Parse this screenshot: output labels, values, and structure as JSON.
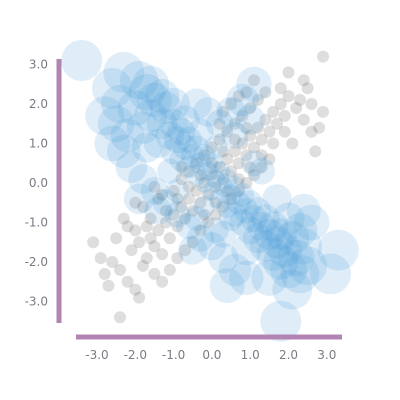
{
  "chart_data": {
    "type": "scatter",
    "title": "",
    "xlabel": "",
    "ylabel": "",
    "xlim": [
      -3.8,
      3.4
    ],
    "ylim": [
      -3.6,
      3.2
    ],
    "grid": false,
    "x_ticks": [
      -3.0,
      -2.0,
      -1.0,
      0.0,
      1.0,
      2.0,
      3.0
    ],
    "y_ticks": [
      -3.0,
      -2.0,
      -1.0,
      0.0,
      1.0,
      2.0,
      3.0
    ],
    "x_tick_labels": [
      "-3.0",
      "-2.0",
      "-1.0",
      "0.0",
      "1.0",
      "2.0",
      "3.0"
    ],
    "y_tick_labels": [
      "-3.0",
      "-2.0",
      "-1.0",
      "0.0",
      "1.0",
      "2.0",
      "3.0"
    ],
    "series": [
      {
        "color": "#4a4a4a",
        "opacity": 0.18,
        "marker_size": "small-uniform",
        "correlation": "positive",
        "points": [
          [
            -2.4,
            -3.4
          ],
          [
            2.9,
            3.2
          ],
          [
            -3.1,
            -1.5
          ],
          [
            -2.9,
            -1.9
          ],
          [
            -2.6,
            -2.0
          ],
          [
            -2.4,
            -2.2
          ],
          [
            -2.2,
            -2.5
          ],
          [
            -2.0,
            -2.7
          ],
          [
            -2.1,
            -1.7
          ],
          [
            -1.9,
            -1.5
          ],
          [
            -1.8,
            -2.1
          ],
          [
            -1.7,
            -1.9
          ],
          [
            -1.6,
            -1.4
          ],
          [
            -1.5,
            -1.6
          ],
          [
            -1.4,
            -1.2
          ],
          [
            -1.3,
            -1.8
          ],
          [
            -1.2,
            -1.0
          ],
          [
            -1.1,
            -1.4
          ],
          [
            -1.0,
            -0.8
          ],
          [
            -0.9,
            -1.1
          ],
          [
            -0.8,
            -0.6
          ],
          [
            -0.7,
            -0.9
          ],
          [
            -0.6,
            -0.4
          ],
          [
            -0.5,
            -0.7
          ],
          [
            -0.4,
            -0.2
          ],
          [
            -0.3,
            -0.5
          ],
          [
            -0.2,
            0.0
          ],
          [
            -0.1,
            -0.3
          ],
          [
            0.0,
            0.2
          ],
          [
            0.1,
            -0.1
          ],
          [
            0.2,
            0.4
          ],
          [
            0.3,
            0.1
          ],
          [
            0.4,
            0.6
          ],
          [
            0.5,
            0.3
          ],
          [
            0.6,
            0.8
          ],
          [
            0.7,
            0.5
          ],
          [
            0.8,
            1.0
          ],
          [
            0.9,
            0.7
          ],
          [
            1.0,
            1.2
          ],
          [
            1.1,
            0.9
          ],
          [
            1.2,
            1.4
          ],
          [
            1.3,
            1.1
          ],
          [
            1.4,
            1.6
          ],
          [
            1.5,
            1.3
          ],
          [
            1.6,
            1.8
          ],
          [
            1.7,
            1.5
          ],
          [
            1.8,
            2.0
          ],
          [
            1.9,
            1.7
          ],
          [
            2.0,
            2.2
          ],
          [
            2.2,
            1.9
          ],
          [
            2.4,
            1.6
          ],
          [
            2.6,
            1.3
          ],
          [
            2.3,
            2.1
          ],
          [
            2.5,
            2.4
          ],
          [
            2.1,
            1.0
          ],
          [
            2.7,
            0.8
          ],
          [
            -2.5,
            -1.4
          ],
          [
            -2.3,
            -0.9
          ],
          [
            -2.0,
            -1.2
          ],
          [
            -1.8,
            -0.6
          ],
          [
            -1.6,
            -0.9
          ],
          [
            -1.4,
            -0.4
          ],
          [
            -1.2,
            -0.7
          ],
          [
            -1.0,
            -0.2
          ],
          [
            -0.8,
            0.1
          ],
          [
            -0.6,
            0.3
          ],
          [
            -0.4,
            0.5
          ],
          [
            -0.2,
            0.7
          ],
          [
            0.0,
            0.9
          ],
          [
            0.2,
            1.1
          ],
          [
            0.4,
            1.3
          ],
          [
            0.6,
            1.5
          ],
          [
            0.8,
            1.7
          ],
          [
            1.0,
            1.9
          ],
          [
            1.2,
            2.1
          ],
          [
            1.4,
            2.3
          ],
          [
            0.3,
            1.8
          ],
          [
            0.5,
            2.0
          ],
          [
            0.9,
            2.3
          ],
          [
            1.1,
            2.6
          ],
          [
            -1.5,
            -2.3
          ],
          [
            -1.3,
            -2.5
          ],
          [
            -1.1,
            -2.2
          ],
          [
            -0.9,
            -1.9
          ],
          [
            -0.7,
            -1.7
          ],
          [
            -0.5,
            -1.5
          ],
          [
            -0.3,
            -1.2
          ],
          [
            -0.1,
            -1.0
          ],
          [
            0.1,
            -0.8
          ],
          [
            0.3,
            -0.6
          ],
          [
            0.5,
            -0.4
          ],
          [
            0.7,
            -0.2
          ],
          [
            0.9,
            0.0
          ],
          [
            1.1,
            0.2
          ],
          [
            1.3,
            0.4
          ],
          [
            1.5,
            0.6
          ],
          [
            -2.7,
            -2.6
          ],
          [
            -2.8,
            -2.3
          ],
          [
            -1.9,
            -2.9
          ],
          [
            2.8,
            1.4
          ],
          [
            2.9,
            1.8
          ],
          [
            2.6,
            2.0
          ],
          [
            2.4,
            2.6
          ],
          [
            2.0,
            2.8
          ],
          [
            -0.9,
            -0.4
          ],
          [
            -0.6,
            -0.1
          ],
          [
            -0.3,
            0.2
          ],
          [
            0.0,
            0.5
          ],
          [
            0.3,
            0.8
          ],
          [
            0.6,
            1.1
          ],
          [
            0.9,
            1.4
          ],
          [
            -1.7,
            -1.1
          ],
          [
            -0.2,
            -0.8
          ],
          [
            0.1,
            -0.5
          ],
          [
            0.4,
            -0.2
          ],
          [
            0.7,
            0.1
          ],
          [
            1.0,
            0.4
          ],
          [
            1.3,
            0.7
          ],
          [
            1.6,
            1.0
          ],
          [
            1.9,
            1.3
          ],
          [
            -2.2,
            -1.1
          ],
          [
            -2.0,
            -0.5
          ],
          [
            -1.5,
            -0.1
          ],
          [
            -1.3,
            -0.3
          ],
          [
            -0.8,
            0.4
          ],
          [
            0.2,
            1.5
          ],
          [
            0.7,
            2.2
          ],
          [
            1.8,
            2.4
          ]
        ]
      },
      {
        "color": "#4a9ad8",
        "opacity": 0.18,
        "marker_size": "varies",
        "correlation": "negative",
        "points": [
          [
            -3.4,
            3.1
          ],
          [
            1.8,
            -3.5
          ],
          [
            3.3,
            -1.7
          ],
          [
            3.1,
            -2.3
          ],
          [
            -2.6,
            2.4
          ],
          [
            -2.3,
            2.8
          ],
          [
            -1.9,
            2.6
          ],
          [
            -1.6,
            2.5
          ],
          [
            -2.5,
            1.5
          ],
          [
            -2.2,
            1.2
          ],
          [
            -2.0,
            1.9
          ],
          [
            -1.8,
            1.4
          ],
          [
            -1.6,
            1.7
          ],
          [
            -1.5,
            2.1
          ],
          [
            -1.4,
            1.0
          ],
          [
            -1.3,
            1.5
          ],
          [
            -1.2,
            1.9
          ],
          [
            -1.1,
            1.2
          ],
          [
            -1.0,
            0.8
          ],
          [
            -1.0,
            1.5
          ],
          [
            -0.9,
            1.1
          ],
          [
            -0.8,
            0.6
          ],
          [
            -0.8,
            1.3
          ],
          [
            -0.7,
            0.9
          ],
          [
            -0.6,
            0.4
          ],
          [
            -0.6,
            1.1
          ],
          [
            -0.5,
            0.7
          ],
          [
            -0.4,
            0.2
          ],
          [
            -0.4,
            0.9
          ],
          [
            -0.3,
            0.5
          ],
          [
            -0.2,
            0.0
          ],
          [
            -0.2,
            0.7
          ],
          [
            -0.1,
            0.3
          ],
          [
            0.0,
            -0.2
          ],
          [
            0.0,
            0.5
          ],
          [
            0.1,
            0.1
          ],
          [
            0.2,
            -0.4
          ],
          [
            0.2,
            0.3
          ],
          [
            0.3,
            -0.1
          ],
          [
            0.4,
            -0.6
          ],
          [
            0.4,
            0.1
          ],
          [
            0.5,
            -0.3
          ],
          [
            0.6,
            -0.8
          ],
          [
            0.6,
            -0.1
          ],
          [
            0.7,
            -0.5
          ],
          [
            0.8,
            -1.0
          ],
          [
            0.8,
            -0.3
          ],
          [
            0.9,
            -0.7
          ],
          [
            1.0,
            -1.2
          ],
          [
            1.0,
            -0.5
          ],
          [
            1.1,
            -0.9
          ],
          [
            1.2,
            -1.4
          ],
          [
            1.2,
            -0.7
          ],
          [
            1.3,
            -1.1
          ],
          [
            1.4,
            -1.6
          ],
          [
            1.4,
            -0.9
          ],
          [
            1.5,
            -1.3
          ],
          [
            1.6,
            -1.8
          ],
          [
            1.6,
            -1.1
          ],
          [
            1.7,
            -1.5
          ],
          [
            1.8,
            -2.0
          ],
          [
            1.8,
            -1.3
          ],
          [
            1.9,
            -1.7
          ],
          [
            2.0,
            -2.2
          ],
          [
            2.1,
            -1.4
          ],
          [
            2.2,
            -1.9
          ],
          [
            2.3,
            -2.3
          ],
          [
            2.4,
            -1.6
          ],
          [
            2.5,
            -2.1
          ],
          [
            2.6,
            -1.0
          ],
          [
            2.4,
            -0.7
          ],
          [
            0.9,
            -2.4
          ],
          [
            0.6,
            -2.2
          ],
          [
            0.3,
            -1.9
          ],
          [
            0.0,
            -1.6
          ],
          [
            -0.3,
            -1.4
          ],
          [
            -0.6,
            -1.1
          ],
          [
            -0.9,
            -0.8
          ],
          [
            -1.2,
            -0.5
          ],
          [
            -1.5,
            -0.2
          ],
          [
            -1.8,
            0.1
          ],
          [
            -2.1,
            0.4
          ],
          [
            -2.3,
            0.8
          ],
          [
            -2.6,
            1.0
          ],
          [
            -1.9,
            -0.4
          ],
          [
            -1.4,
            -0.7
          ],
          [
            -0.5,
            -1.7
          ],
          [
            0.4,
            -2.6
          ],
          [
            1.1,
            2.5
          ],
          [
            0.8,
            2.1
          ],
          [
            0.5,
            1.8
          ],
          [
            0.2,
            1.5
          ],
          [
            -0.1,
            1.8
          ],
          [
            -0.4,
            2.0
          ],
          [
            0.6,
            1.2
          ],
          [
            1.0,
            1.6
          ],
          [
            -1.7,
            0.9
          ],
          [
            -1.1,
            0.3
          ],
          [
            -0.9,
            -0.2
          ],
          [
            -0.2,
            -0.6
          ],
          [
            0.3,
            -1.3
          ],
          [
            0.9,
            -1.7
          ],
          [
            1.5,
            -2.4
          ],
          [
            2.1,
            -2.7
          ],
          [
            -2.8,
            1.7
          ],
          [
            -2.4,
            2.0
          ],
          [
            -1.7,
            2.3
          ],
          [
            -1.3,
            2.2
          ],
          [
            -1.0,
            2.0
          ],
          [
            -0.7,
            1.6
          ],
          [
            -0.3,
            1.3
          ],
          [
            0.1,
            0.9
          ],
          [
            1.3,
            0.3
          ],
          [
            1.7,
            -0.4
          ],
          [
            2.0,
            -0.9
          ],
          [
            2.3,
            -1.2
          ],
          [
            0.5,
            -0.9
          ],
          [
            0.1,
            -1.2
          ],
          [
            -0.4,
            -0.9
          ],
          [
            1.1,
            0.5
          ]
        ]
      }
    ]
  }
}
